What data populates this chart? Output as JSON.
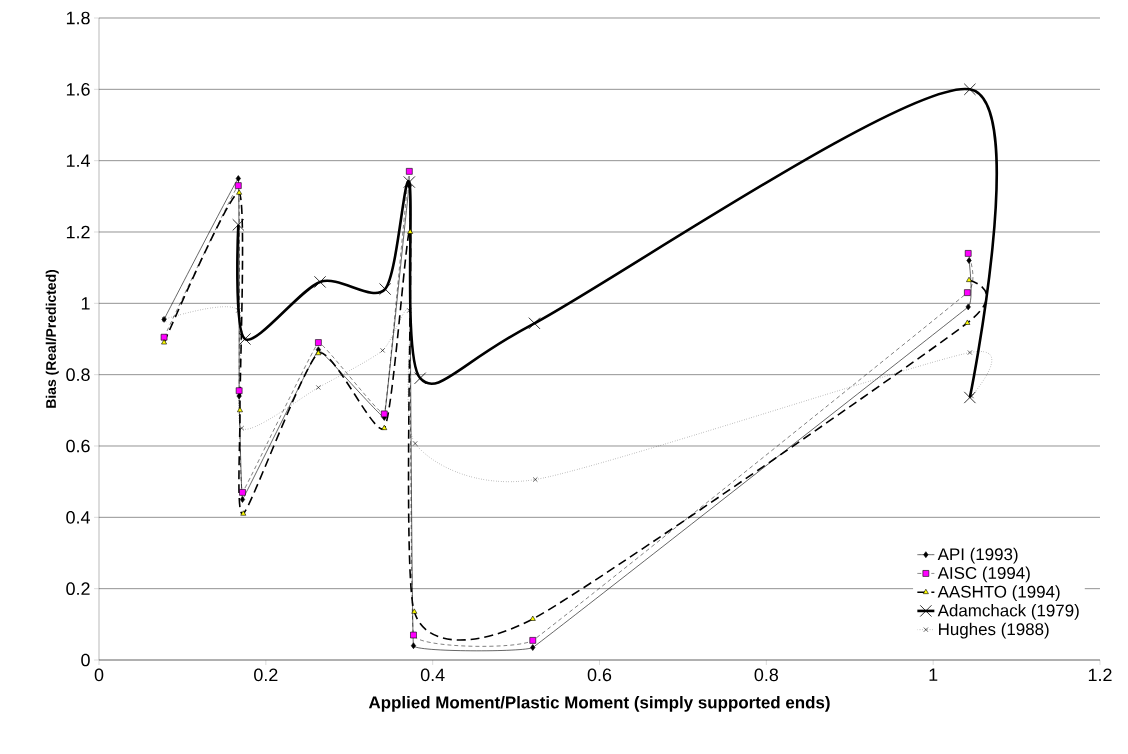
{
  "chart_data": {
    "type": "line",
    "xlabel": "Applied Moment/Plastic Moment (simply supported ends)",
    "ylabel": "Bias (Real/Predicted)",
    "xlim": [
      0,
      1.2
    ],
    "xticks": [
      0,
      0.2,
      0.4,
      0.6,
      0.8,
      1,
      1.2
    ],
    "ylim": [
      0,
      1.8
    ],
    "yticks": [
      0,
      0.2,
      0.4,
      0.6,
      0.8,
      1,
      1.2,
      1.4,
      1.6,
      1.8
    ],
    "grid": "y",
    "legend": "bottom right",
    "series": [
      {
        "name": "API (1993)",
        "color": "#000000",
        "marker": "diamond",
        "line_style": "solid",
        "x": [
          0.078,
          0.167,
          0.168,
          0.172,
          0.263,
          0.342,
          0.372,
          0.377,
          0.52,
          1.042,
          1.043
        ],
        "values": [
          0.955,
          1.35,
          0.74,
          0.45,
          0.87,
          0.68,
          1.33,
          0.04,
          0.035,
          0.99,
          1.12
        ]
      },
      {
        "name": "AISC (1994)",
        "color": "#ff00ff",
        "marker": "square",
        "line_style": "dashed",
        "x": [
          0.078,
          0.167,
          0.168,
          0.172,
          0.263,
          0.342,
          0.372,
          0.377,
          0.52,
          1.041,
          1.042
        ],
        "values": [
          0.905,
          1.33,
          0.755,
          0.47,
          0.89,
          0.69,
          1.37,
          0.07,
          0.055,
          1.03,
          1.14
        ]
      },
      {
        "name": "AASHTO (1994)",
        "color": "#ffff00",
        "marker": "triangle",
        "line_style": "dashed",
        "x": [
          0.078,
          0.168,
          0.169,
          0.173,
          0.263,
          0.342,
          0.373,
          0.378,
          0.52,
          1.041,
          1.043
        ],
        "values": [
          0.89,
          1.31,
          0.7,
          0.41,
          0.86,
          0.65,
          1.2,
          0.135,
          0.115,
          0.945,
          1.065
        ]
      },
      {
        "name": "Adamchack (1979)",
        "color": "#000000",
        "marker": "cross",
        "line_style": "solid",
        "x": [
          0.167,
          0.175,
          0.265,
          0.343,
          0.372,
          0.385,
          0.522,
          1.044,
          1.044
        ],
        "values": [
          1.22,
          0.9,
          1.06,
          1.04,
          1.34,
          0.79,
          0.944,
          1.6,
          0.736
        ]
      },
      {
        "name": "Hughes (1988)",
        "color": "#000000",
        "marker": "cross",
        "line_style": "dotted",
        "x": [
          0.078,
          0.167,
          0.171,
          0.263,
          0.34,
          0.372,
          0.379,
          0.523,
          1.044,
          1.046
        ],
        "values": [
          0.955,
          0.98,
          0.65,
          0.764,
          0.868,
          0.98,
          0.607,
          0.506,
          0.862,
          0.74
        ]
      }
    ]
  }
}
